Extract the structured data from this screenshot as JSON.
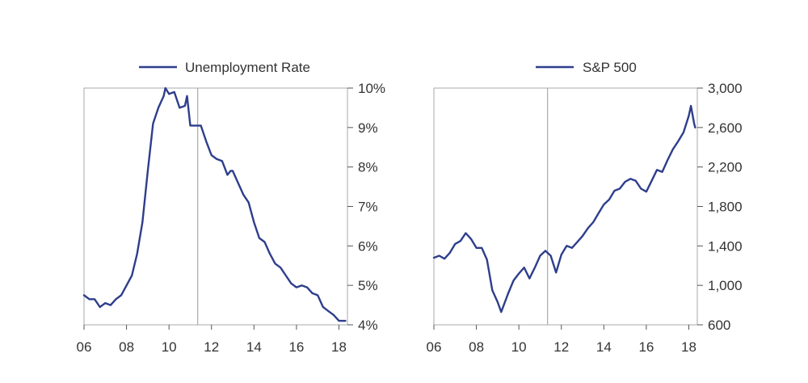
{
  "chart_data": [
    {
      "type": "line",
      "legend": "Unemployment Rate",
      "legend_position": "top",
      "x_tick_labels": [
        "06",
        "08",
        "10",
        "12",
        "14",
        "16",
        "18"
      ],
      "y_tick_labels": [
        "10%",
        "9%",
        "8%",
        "7%",
        "6%",
        "5%",
        "4%"
      ],
      "y_axis_side": "right",
      "xlim": [
        2006.0,
        2018.4
      ],
      "ylim": [
        4,
        10
      ],
      "reference_line_x": 2011.35,
      "color": "#2e3e8c",
      "series": [
        {
          "x": [
            2006.0,
            2006.25,
            2006.5,
            2006.75,
            2007.0,
            2007.25,
            2007.5,
            2007.75,
            2008.0,
            2008.25,
            2008.5,
            2008.75,
            2009.0,
            2009.25,
            2009.5,
            2009.75,
            2009.83,
            2010.0,
            2010.25,
            2010.5,
            2010.75,
            2010.85,
            2011.0,
            2011.25,
            2011.5,
            2011.75,
            2012.0,
            2012.25,
            2012.5,
            2012.75,
            2012.9,
            2013.0,
            2013.25,
            2013.5,
            2013.75,
            2014.0,
            2014.25,
            2014.5,
            2014.75,
            2015.0,
            2015.25,
            2015.5,
            2015.75,
            2016.0,
            2016.25,
            2016.5,
            2016.75,
            2017.0,
            2017.25,
            2017.5,
            2017.75,
            2018.0,
            2018.25,
            2018.3
          ],
          "y": [
            4.75,
            4.65,
            4.65,
            4.45,
            4.55,
            4.5,
            4.65,
            4.75,
            5.0,
            5.25,
            5.8,
            6.6,
            7.9,
            9.1,
            9.5,
            9.8,
            10.0,
            9.85,
            9.9,
            9.5,
            9.55,
            9.8,
            9.05,
            9.05,
            9.05,
            8.65,
            8.3,
            8.2,
            8.15,
            7.8,
            7.9,
            7.9,
            7.6,
            7.3,
            7.1,
            6.6,
            6.2,
            6.1,
            5.8,
            5.55,
            5.45,
            5.25,
            5.05,
            4.95,
            5.0,
            4.95,
            4.8,
            4.75,
            4.45,
            4.35,
            4.25,
            4.1,
            4.1,
            4.1
          ]
        }
      ]
    },
    {
      "type": "line",
      "legend": "S&P 500",
      "legend_position": "top",
      "x_tick_labels": [
        "06",
        "08",
        "10",
        "12",
        "14",
        "16",
        "18"
      ],
      "y_tick_labels": [
        "3,000",
        "2,600",
        "2,200",
        "1,800",
        "1,400",
        "1,000",
        "600"
      ],
      "y_axis_side": "right",
      "xlim": [
        2006.0,
        2018.4
      ],
      "ylim": [
        600,
        3000
      ],
      "reference_line_x": 2011.35,
      "color": "#2e3e8c",
      "series": [
        {
          "x": [
            2006.0,
            2006.25,
            2006.5,
            2006.75,
            2007.0,
            2007.25,
            2007.5,
            2007.75,
            2008.0,
            2008.25,
            2008.5,
            2008.75,
            2009.0,
            2009.17,
            2009.5,
            2009.75,
            2010.0,
            2010.25,
            2010.5,
            2010.75,
            2011.0,
            2011.25,
            2011.5,
            2011.75,
            2012.0,
            2012.25,
            2012.5,
            2012.75,
            2013.0,
            2013.25,
            2013.5,
            2013.75,
            2014.0,
            2014.25,
            2014.5,
            2014.75,
            2015.0,
            2015.25,
            2015.5,
            2015.75,
            2016.0,
            2016.25,
            2016.5,
            2016.75,
            2017.0,
            2017.25,
            2017.5,
            2017.75,
            2018.0,
            2018.1,
            2018.25,
            2018.3
          ],
          "y": [
            1280,
            1300,
            1270,
            1330,
            1420,
            1450,
            1530,
            1470,
            1380,
            1380,
            1260,
            950,
            830,
            730,
            920,
            1050,
            1120,
            1180,
            1070,
            1180,
            1300,
            1350,
            1300,
            1130,
            1310,
            1400,
            1380,
            1440,
            1500,
            1580,
            1640,
            1730,
            1820,
            1870,
            1960,
            1980,
            2050,
            2080,
            2060,
            1980,
            1950,
            2060,
            2170,
            2150,
            2270,
            2380,
            2460,
            2550,
            2720,
            2820,
            2640,
            2600
          ]
        }
      ]
    }
  ]
}
